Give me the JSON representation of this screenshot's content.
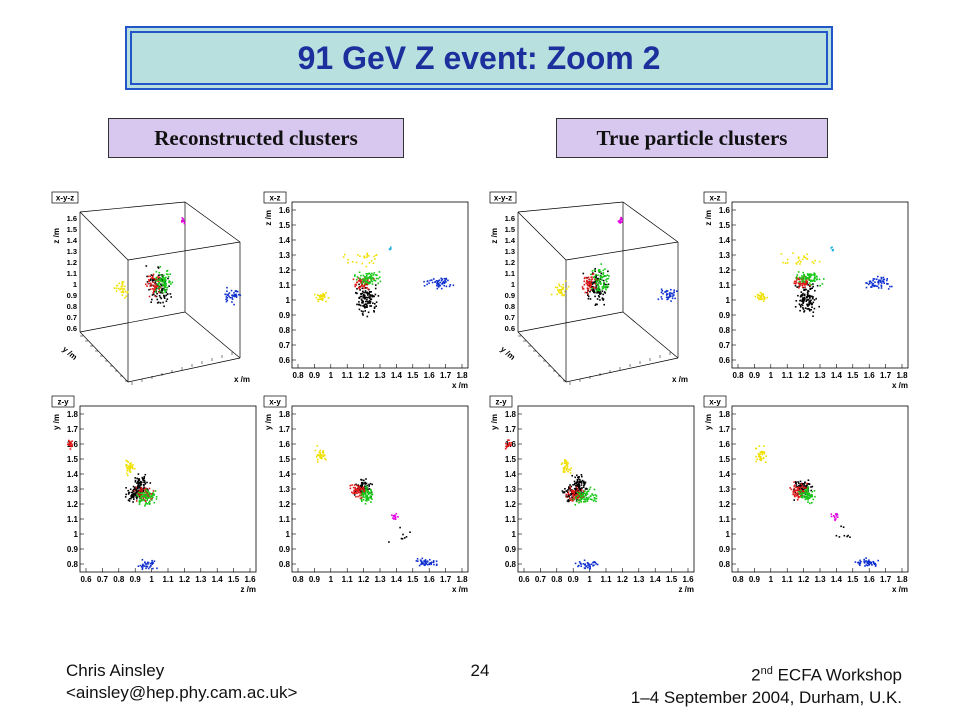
{
  "slide": {
    "title": "91 GeV Z event: Zoom 2",
    "left_caption": "Reconstructed clusters",
    "right_caption": "True particle clusters"
  },
  "panels": [
    {
      "label": "x-y-z",
      "type": "3d",
      "zlabel": "z /m",
      "xlabel": "x /m",
      "ylabel": "y /m",
      "zticks": [
        "0.6",
        "0.7",
        "0.8",
        "0.9",
        "1",
        "1.1",
        "1.2",
        "1.3",
        "1.4",
        "1.5",
        "1.6"
      ]
    },
    {
      "label": "x-z",
      "type": "2d",
      "xlabel": "x /m",
      "ylabel": "z /m",
      "xticks": [
        "0.8",
        "0.9",
        "1",
        "1.1",
        "1.2",
        "1.3",
        "1.4",
        "1.5",
        "1.6",
        "1.7",
        "1.8"
      ],
      "yticks": [
        "0.6",
        "0.7",
        "0.8",
        "0.9",
        "1",
        "1.1",
        "1.2",
        "1.3",
        "1.4",
        "1.5",
        "1.6"
      ]
    },
    {
      "label": "z-y",
      "type": "2d",
      "xlabel": "z /m",
      "ylabel": "y /m",
      "xticks": [
        "0.6",
        "0.7",
        "0.8",
        "0.9",
        "1",
        "1.1",
        "1.2",
        "1.3",
        "1.4",
        "1.5",
        "1.6"
      ],
      "yticks": [
        "0.8",
        "0.9",
        "1",
        "1.1",
        "1.2",
        "1.3",
        "1.4",
        "1.5",
        "1.6",
        "1.7",
        "1.8"
      ]
    },
    {
      "label": "x-y",
      "type": "2d",
      "xlabel": "x /m",
      "ylabel": "y /m",
      "xticks": [
        "0.8",
        "0.9",
        "1",
        "1.1",
        "1.2",
        "1.3",
        "1.4",
        "1.5",
        "1.6",
        "1.7",
        "1.8"
      ],
      "yticks": [
        "0.8",
        "0.9",
        "1",
        "1.1",
        "1.2",
        "1.3",
        "1.4",
        "1.5",
        "1.6",
        "1.7",
        "1.8"
      ]
    }
  ],
  "cluster_colors": {
    "black": "#000000",
    "red": "#e01818",
    "green": "#18c818",
    "yellow": "#f0e000",
    "blue": "#1030d0",
    "magenta": "#e000e0",
    "cyan": "#20b0e0"
  },
  "footer": {
    "author": "Chris Ainsley",
    "email": "<ainsley@hep.phy.cam.ac.uk>",
    "page": "24",
    "workshop_num": "2",
    "workshop_sup": "nd",
    "workshop_rest": " ECFA Workshop",
    "location": "1–4 September 2004, Durham, U.K."
  }
}
